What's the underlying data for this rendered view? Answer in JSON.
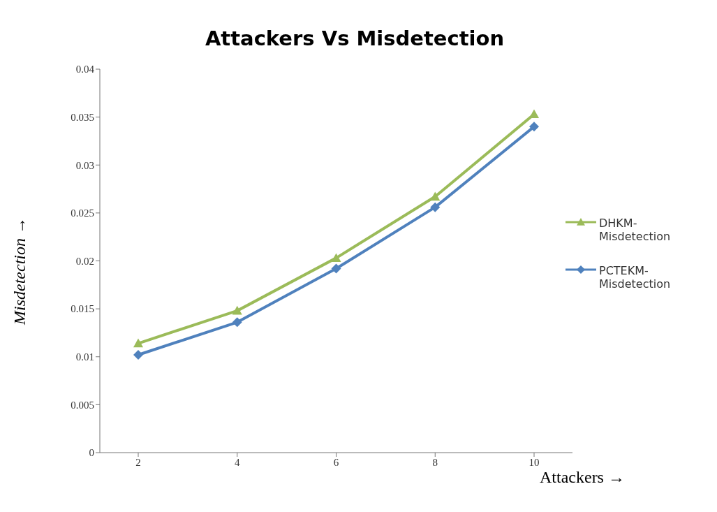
{
  "chart_data": {
    "type": "line",
    "title": "Attackers Vs Misdetection",
    "xlabel": "Attackers →",
    "ylabel": "Misdetection →",
    "categories": [
      "2",
      "4",
      "6",
      "8",
      "10"
    ],
    "series": [
      {
        "name": "DHKM-Misdetection",
        "color": "#9bbb59",
        "marker": "triangle",
        "values": [
          0.0114,
          0.0148,
          0.0203,
          0.0267,
          0.0353
        ]
      },
      {
        "name": "PCTEKM-Misdetection",
        "color": "#4f81bd",
        "marker": "diamond",
        "values": [
          0.0102,
          0.0136,
          0.0192,
          0.0256,
          0.034
        ]
      }
    ],
    "ylim": [
      0,
      0.04
    ],
    "yticks": [
      0,
      0.005,
      0.01,
      0.015,
      0.02,
      0.025,
      0.03,
      0.035,
      0.04
    ],
    "grid": false,
    "legend": "right",
    "line_style": "solid"
  }
}
